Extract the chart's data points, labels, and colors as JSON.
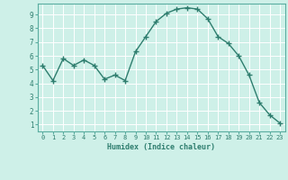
{
  "x": [
    0,
    1,
    2,
    3,
    4,
    5,
    6,
    7,
    8,
    9,
    10,
    11,
    12,
    13,
    14,
    15,
    16,
    17,
    18,
    19,
    20,
    21,
    22,
    23
  ],
  "y": [
    5.3,
    4.2,
    5.8,
    5.3,
    5.7,
    5.3,
    4.3,
    4.6,
    4.2,
    6.3,
    7.4,
    8.5,
    9.1,
    9.4,
    9.5,
    9.4,
    8.7,
    7.4,
    6.9,
    6.0,
    4.6,
    2.6,
    1.7,
    1.1
  ],
  "line_color": "#2e7d6e",
  "marker": "+",
  "marker_size": 4,
  "xlabel": "Humidex (Indice chaleur)",
  "xlim": [
    -0.5,
    23.5
  ],
  "ylim": [
    0.5,
    9.8
  ],
  "yticks": [
    1,
    2,
    3,
    4,
    5,
    6,
    7,
    8,
    9
  ],
  "xticks": [
    0,
    1,
    2,
    3,
    4,
    5,
    6,
    7,
    8,
    9,
    10,
    11,
    12,
    13,
    14,
    15,
    16,
    17,
    18,
    19,
    20,
    21,
    22,
    23
  ],
  "bg_color": "#cef0e8",
  "grid_color": "#ffffff",
  "tick_color": "#2e7d6e",
  "label_color": "#2e7d6e",
  "spine_color": "#5aada0"
}
